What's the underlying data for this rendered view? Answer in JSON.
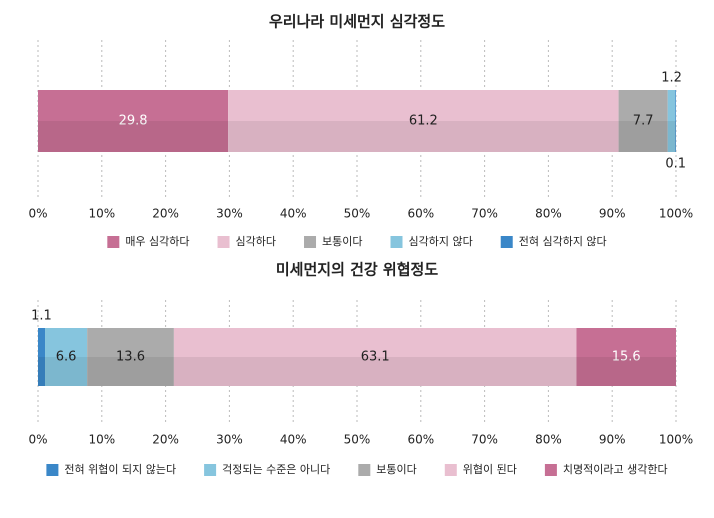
{
  "chart_data": [
    {
      "type": "stacked_bar",
      "title": "우리나라 미세먼지 심각정도",
      "series": [
        {
          "name": "매우 심각하다",
          "color": "#c66f94",
          "values": [
            29.8
          ]
        },
        {
          "name": "심각하다",
          "color": "#e9bfd0",
          "values": [
            61.2
          ]
        },
        {
          "name": "보통이다",
          "color": "#ababab",
          "values": [
            7.7
          ]
        },
        {
          "name": "심각하지 않다",
          "color": "#86c5de",
          "values": [
            1.2
          ]
        },
        {
          "name": "전혀 심각하지 않다",
          "color": "#3a87c8",
          "values": [
            0.1
          ]
        }
      ],
      "xlim": [
        0,
        100
      ],
      "xticks": [
        {
          "value": 0,
          "label": "0%"
        },
        {
          "value": 10,
          "label": "10%"
        },
        {
          "value": 20,
          "label": "20%"
        },
        {
          "value": 30,
          "label": "30%"
        },
        {
          "value": 40,
          "label": "40%"
        },
        {
          "value": 50,
          "label": "50%"
        },
        {
          "value": 60,
          "label": "60%"
        },
        {
          "value": 70,
          "label": "70%"
        },
        {
          "value": 80,
          "label": "80%"
        },
        {
          "value": 90,
          "label": "90%"
        },
        {
          "value": 100,
          "label": "100%"
        }
      ],
      "grid": true
    },
    {
      "type": "stacked_bar",
      "title": "미세먼지의 건강 위협정도",
      "series": [
        {
          "name": "전혀 위협이 되지 않는다",
          "color": "#3a87c8",
          "values": [
            1.1
          ]
        },
        {
          "name": "걱정되는 수준은 아니다",
          "color": "#86c5de",
          "values": [
            6.6
          ]
        },
        {
          "name": "보통이다",
          "color": "#ababab",
          "values": [
            13.6
          ]
        },
        {
          "name": "위협이 된다",
          "color": "#e9bfd0",
          "values": [
            63.1
          ]
        },
        {
          "name": "치명적이라고 생각한다",
          "color": "#c66f94",
          "values": [
            15.6
          ]
        }
      ],
      "xlim": [
        0,
        100
      ],
      "xticks": [
        {
          "value": 0,
          "label": "0%"
        },
        {
          "value": 10,
          "label": "10%"
        },
        {
          "value": 20,
          "label": "20%"
        },
        {
          "value": 30,
          "label": "30%"
        },
        {
          "value": 40,
          "label": "40%"
        },
        {
          "value": 50,
          "label": "50%"
        },
        {
          "value": 60,
          "label": "60%"
        },
        {
          "value": 70,
          "label": "70%"
        },
        {
          "value": 80,
          "label": "80%"
        },
        {
          "value": 90,
          "label": "90%"
        },
        {
          "value": 100,
          "label": "100%"
        }
      ],
      "grid": true
    }
  ]
}
